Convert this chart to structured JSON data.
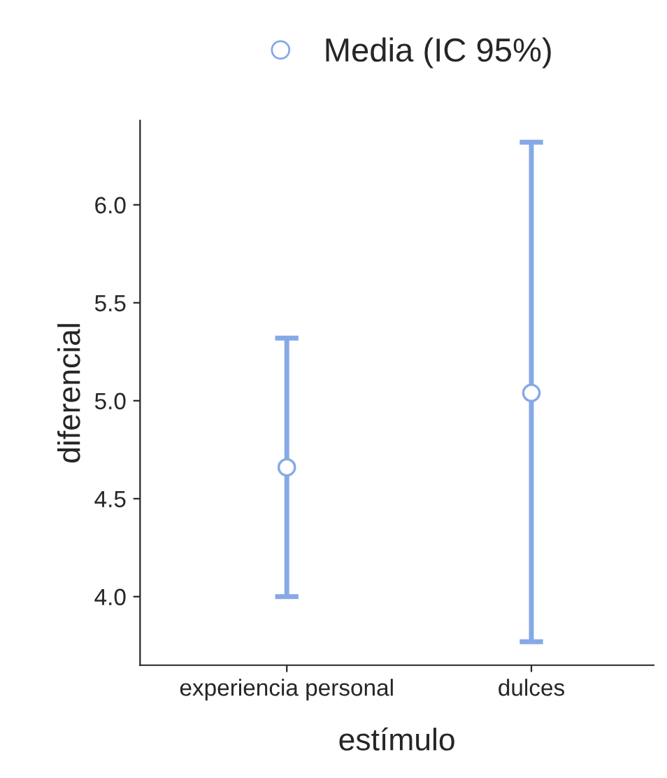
{
  "chart_data": {
    "type": "scatter",
    "xlabel": "estímulo",
    "ylabel": "diferencial",
    "categories": [
      "experiencia personal",
      "dulces"
    ],
    "series": [
      {
        "name": "Media (IC 95%)",
        "color": "#86a9e6",
        "values": [
          4.66,
          5.04
        ],
        "errors": [
          [
            4.0,
            5.32
          ],
          [
            3.77,
            6.32
          ]
        ]
      }
    ],
    "ylim": [
      3.65,
      6.43
    ],
    "yticks": [
      {
        "value": 4.0,
        "label": "4.0"
      },
      {
        "value": 4.5,
        "label": "4.5"
      },
      {
        "value": 5.0,
        "label": "5.0"
      },
      {
        "value": 5.5,
        "label": "5.5"
      },
      {
        "value": 6.0,
        "label": "6.0"
      }
    ],
    "grid": false,
    "legend": "top",
    "marker": "circle"
  }
}
